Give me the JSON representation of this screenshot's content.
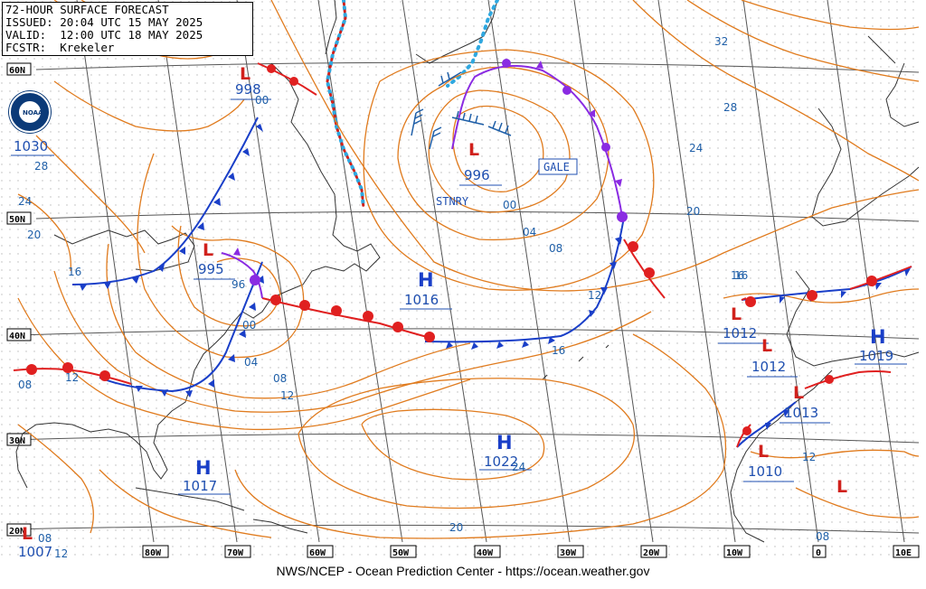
{
  "header": {
    "line1": "72-HOUR SURFACE FORECAST",
    "line2": "ISSUED: 20:04 UTC 15 MAY 2025",
    "line3": "VALID:  12:00 UTC 18 MAY 2025",
    "line4": "FCSTR:  Krekeler"
  },
  "footer": "NWS/NCEP - Ocean Prediction Center - https://ocean.weather.gov",
  "logo_text": "NOAA",
  "colors": {
    "isobar": "#e07b1e",
    "cold_front": "#1a3fc8",
    "warm_front": "#e02020",
    "occluded": "#8a2be2",
    "ice_edge": "#2fa8e0",
    "coast": "#333333",
    "label": "#1f5fa8",
    "high": "#1a3fc8",
    "low": "#d0211c"
  },
  "latitude_labels": [
    "60N",
    "50N",
    "40N",
    "30N",
    "20N"
  ],
  "longitude_labels": [
    "80W",
    "70W",
    "60W",
    "50W",
    "40W",
    "30W",
    "20W",
    "10W",
    "0",
    "10E"
  ],
  "highs": [
    {
      "label": "H",
      "pressure": "1016"
    },
    {
      "label": "H",
      "pressure": "1017"
    },
    {
      "label": "H",
      "pressure": "1019"
    },
    {
      "label": "H",
      "pressure": "1022"
    }
  ],
  "lows": [
    {
      "label": "L",
      "pressure": "998"
    },
    {
      "label": "L",
      "pressure": "996"
    },
    {
      "label": "L",
      "pressure": "995"
    },
    {
      "label": "L",
      "pressure": "1012"
    },
    {
      "label": "L",
      "pressure": "1012"
    },
    {
      "label": "L",
      "pressure": "1013"
    },
    {
      "label": "L",
      "pressure": "1010"
    },
    {
      "label": "L",
      "pressure": "1007"
    },
    {
      "label": "L",
      "pressure": ""
    }
  ],
  "high_1030": "1030",
  "warnings": [
    "GALE"
  ],
  "front_labels": [
    "STNRY"
  ],
  "isobar_labels": [
    "32",
    "28",
    "24",
    "20",
    "28",
    "24",
    "20",
    "16",
    "00",
    "04",
    "08",
    "12",
    "16",
    "96",
    "00",
    "04",
    "08",
    "12",
    "16",
    "12",
    "08",
    "20",
    "24",
    "16",
    "12",
    "08",
    "08",
    "12",
    "00"
  ]
}
